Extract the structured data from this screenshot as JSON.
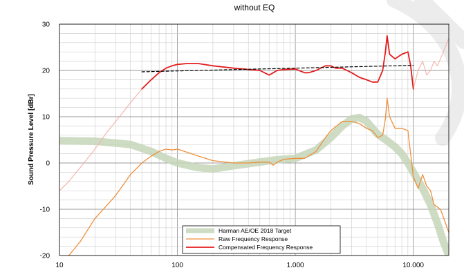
{
  "chart_data": {
    "type": "line",
    "title": "without EQ",
    "xlabel": "",
    "ylabel": "Sound Pressure Level [dBr]",
    "x_scale": "log",
    "xlim": [
      10,
      20000
    ],
    "ylim": [
      -20,
      30
    ],
    "x_ticks": [
      {
        "value": 10,
        "label": "10"
      },
      {
        "value": 100,
        "label": "100"
      },
      {
        "value": 1000,
        "label": "1.000"
      },
      {
        "value": 10000,
        "label": "10.000"
      }
    ],
    "y_ticks": [
      {
        "value": 30,
        "label": "30"
      },
      {
        "value": 20,
        "label": "20"
      },
      {
        "value": 10,
        "label": "10"
      },
      {
        "value": 0,
        "label": "0"
      },
      {
        "value": -10,
        "label": "-10"
      },
      {
        "value": -20,
        "label": "-20"
      }
    ],
    "grid": true,
    "legend_position": "bottom-center",
    "series": [
      {
        "name": "Harman AE/OE 2018 Target",
        "color": "#c5d6b9",
        "style": "thick-band",
        "x": [
          10,
          20,
          40,
          60,
          80,
          100,
          150,
          200,
          300,
          500,
          700,
          1000,
          1500,
          2000,
          2500,
          3000,
          3500,
          4000,
          5000,
          6000,
          7000,
          8000,
          9000,
          10000,
          12000,
          14000,
          16000,
          18000,
          20000
        ],
        "y": [
          4.8,
          4.7,
          4.0,
          2.5,
          1.0,
          0.0,
          -1.0,
          -1.3,
          -0.6,
          0.2,
          0.7,
          1.0,
          2.8,
          5.5,
          8.0,
          9.5,
          9.8,
          9.0,
          6.2,
          4.8,
          3.5,
          2.0,
          0.0,
          -2.0,
          -5.5,
          -9.0,
          -13.0,
          -17.0,
          -20.0
        ]
      },
      {
        "name": "Raw Frequency Response",
        "color": "#ee8f3b",
        "style": "line",
        "x": [
          12,
          15,
          20,
          30,
          40,
          50,
          60,
          70,
          80,
          90,
          100,
          150,
          200,
          300,
          400,
          500,
          600,
          650,
          700,
          800,
          1000,
          1200,
          1500,
          1800,
          2000,
          2500,
          3000,
          3500,
          4000,
          4500,
          5000,
          5500,
          5800,
          6000,
          6300,
          7000,
          8000,
          9000,
          10000,
          11000,
          12000,
          13000,
          14000,
          15000,
          17000,
          20000
        ],
        "y": [
          -20,
          -17,
          -12,
          -7,
          -2.5,
          0,
          1.5,
          2.5,
          3.0,
          2.8,
          3.0,
          1.5,
          0.5,
          0.0,
          0.0,
          0.2,
          0.2,
          -0.5,
          0.2,
          0.8,
          1.0,
          1.0,
          2.5,
          5.5,
          7.0,
          9.0,
          9.0,
          8.5,
          7.5,
          7.0,
          5.5,
          6.0,
          9.5,
          14.0,
          10.0,
          7.5,
          7.5,
          7.0,
          -3.0,
          -5.5,
          -2.5,
          -5.0,
          -6.0,
          -9.0,
          -10.0,
          -15.0
        ]
      },
      {
        "name": "Compensated Frequency Response",
        "color": "#e31c1c",
        "style": "line",
        "x": [
          50,
          60,
          70,
          80,
          90,
          100,
          120,
          150,
          200,
          300,
          500,
          600,
          650,
          700,
          800,
          1000,
          1200,
          1300,
          1500,
          1800,
          2000,
          2200,
          2500,
          3000,
          3500,
          4000,
          4500,
          5000,
          5500,
          5800,
          6000,
          6300,
          7000,
          8000,
          9000,
          9500,
          10000
        ],
        "y": [
          16,
          18,
          19.5,
          20.5,
          21,
          21.3,
          21.5,
          21.5,
          21.0,
          20.5,
          20.0,
          19.0,
          19.5,
          20.0,
          20.2,
          20.3,
          19.5,
          19.5,
          20.0,
          21.0,
          21.0,
          20.5,
          20.5,
          19.5,
          18.5,
          18.0,
          17.5,
          17.5,
          20.0,
          24.0,
          27.5,
          23.5,
          22.5,
          23.5,
          24.0,
          21.0,
          16.0
        ]
      },
      {
        "name": "",
        "color": "#000000",
        "style": "dashed",
        "x": [
          50,
          100,
          1000,
          10000
        ],
        "y": [
          19.7,
          19.9,
          20.5,
          21.1
        ]
      },
      {
        "name": "",
        "color": "#f4b2a7",
        "style": "faded",
        "x": [
          10,
          12,
          15,
          20,
          25,
          30,
          40,
          50
        ],
        "y": [
          -6,
          -4,
          -1,
          3,
          6.5,
          9,
          13,
          16
        ]
      },
      {
        "name": "",
        "color": "#f4b2a7",
        "style": "faded",
        "x": [
          10000,
          11000,
          12000,
          13000,
          14000,
          15000,
          16000,
          18000,
          20000
        ],
        "y": [
          16,
          20,
          22,
          19,
          20,
          22,
          21,
          24,
          27
        ]
      }
    ]
  }
}
